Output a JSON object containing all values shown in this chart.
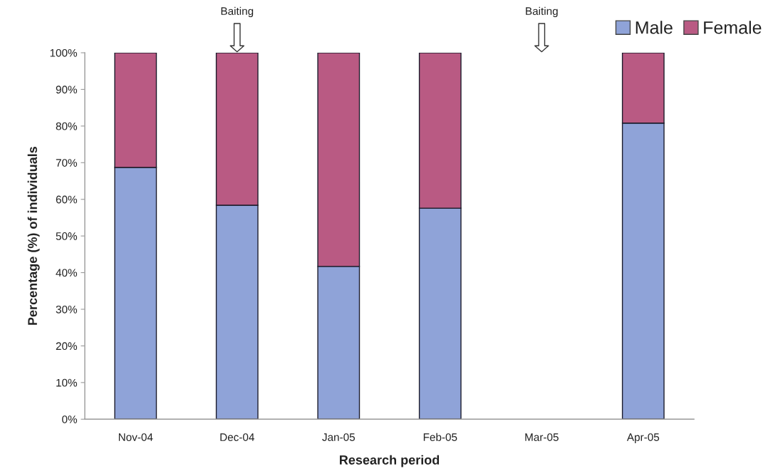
{
  "chart_data": {
    "type": "bar",
    "stacked": true,
    "categories": [
      "Nov-04",
      "Dec-04",
      "Jan-05",
      "Feb-05",
      "Mar-05",
      "Apr-05"
    ],
    "series": [
      {
        "name": "Male",
        "color": "#8fa3d8",
        "values": [
          68.7,
          58.4,
          41.7,
          57.6,
          null,
          80.8
        ]
      },
      {
        "name": "Female",
        "color": "#b95a83",
        "values": [
          31.3,
          41.6,
          58.3,
          42.4,
          null,
          19.2
        ]
      }
    ],
    "xlabel": "Research period",
    "ylabel": "Percentage (%) of individuals",
    "ylim": [
      0,
      100
    ],
    "yticks": [
      {
        "value": 0,
        "label": "0%"
      },
      {
        "value": 10,
        "label": "10%"
      },
      {
        "value": 20,
        "label": "20%"
      },
      {
        "value": 30,
        "label": "30%"
      },
      {
        "value": 40,
        "label": "40%"
      },
      {
        "value": 50,
        "label": "50%"
      },
      {
        "value": 60,
        "label": "60%"
      },
      {
        "value": 70,
        "label": "70%"
      },
      {
        "value": 80,
        "label": "80%"
      },
      {
        "value": 90,
        "label": "90%"
      },
      {
        "value": 100,
        "label": "100%"
      }
    ],
    "annotations": [
      "Baiting",
      "Baiting"
    ],
    "legend": "top right"
  }
}
